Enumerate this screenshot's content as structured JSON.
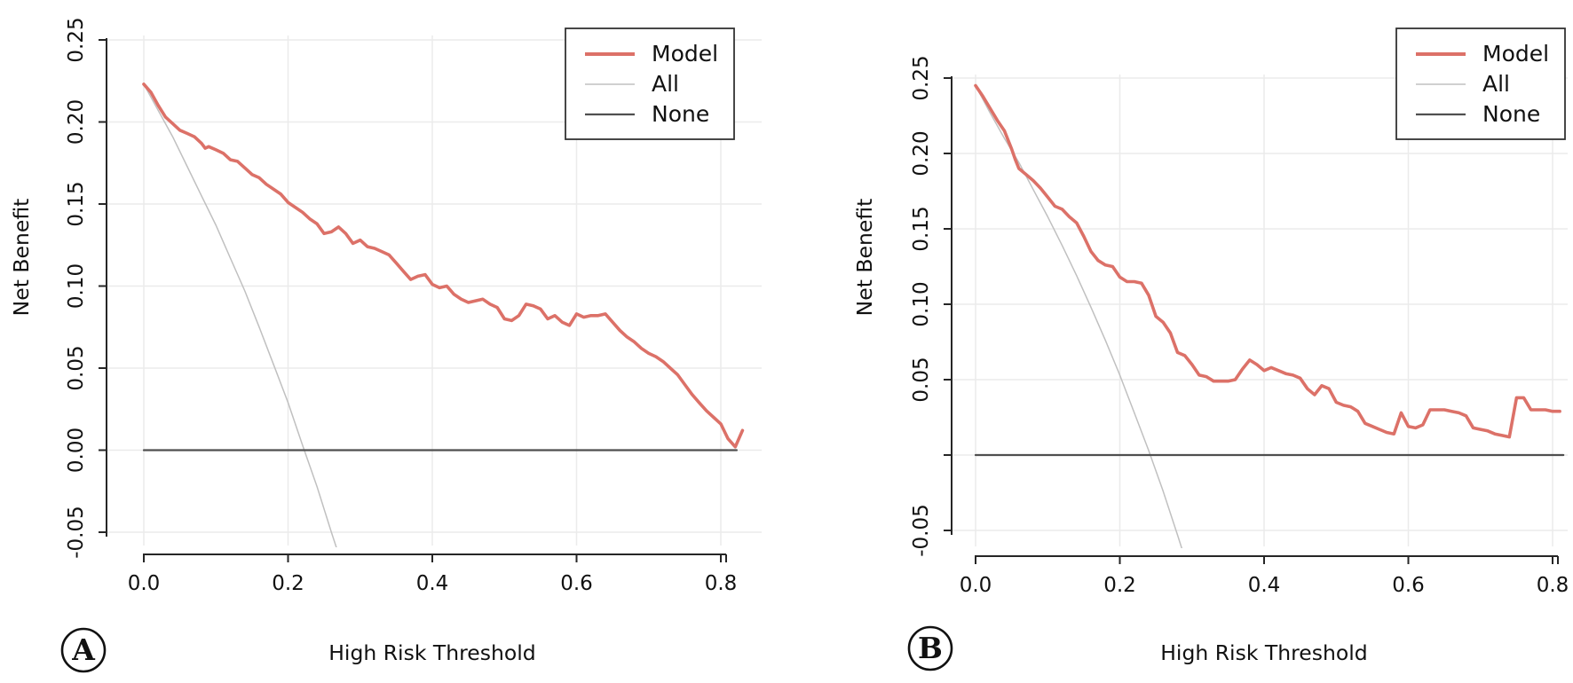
{
  "figure": {
    "background": "#ffffff",
    "description": "Two-panel decision curve analysis: Net Benefit vs High Risk Threshold"
  },
  "colors": {
    "model": "#dc7168",
    "all": "#c0c0c0",
    "none": "#4f4f4f",
    "axis": "#262626",
    "grid": "#ebebeb",
    "text": "#111111",
    "legend_border": "#333333",
    "legend_bg": "#ffffff"
  },
  "chart_data": [
    {
      "type": "line",
      "panel_label": "A",
      "title": "",
      "xlabel": "High Risk Threshold",
      "ylabel": "Net Benefit",
      "xlim": [
        0.0,
        0.84
      ],
      "ylim": [
        -0.06,
        0.25
      ],
      "grid": true,
      "x_ticks": [
        {
          "v": 0.0,
          "label": "0.0"
        },
        {
          "v": 0.2,
          "label": "0.2"
        },
        {
          "v": 0.4,
          "label": "0.4"
        },
        {
          "v": 0.6,
          "label": "0.6"
        },
        {
          "v": 0.8,
          "label": "0.8"
        }
      ],
      "y_ticks": [
        {
          "v": 0.25,
          "label": "0.25"
        },
        {
          "v": 0.2,
          "label": "0.20"
        },
        {
          "v": 0.15,
          "label": "0.15"
        },
        {
          "v": 0.1,
          "label": "0.10"
        },
        {
          "v": 0.05,
          "label": "0.05"
        },
        {
          "v": 0.0,
          "label": "0.00"
        },
        {
          "v": -0.05,
          "label": "-0.05"
        }
      ],
      "legend": {
        "position": "top-right",
        "entries": [
          {
            "label": "Model",
            "series": "model"
          },
          {
            "label": "All",
            "series": "all"
          },
          {
            "label": "None",
            "series": "none"
          }
        ]
      },
      "series": [
        {
          "name": "All",
          "key": "all",
          "points": [
            [
              0.0,
              0.223
            ],
            [
              0.02,
              0.207
            ],
            [
              0.04,
              0.191
            ],
            [
              0.06,
              0.173
            ],
            [
              0.08,
              0.155
            ],
            [
              0.1,
              0.137
            ],
            [
              0.12,
              0.117
            ],
            [
              0.14,
              0.097
            ],
            [
              0.16,
              0.075
            ],
            [
              0.18,
              0.052
            ],
            [
              0.2,
              0.029
            ],
            [
              0.22,
              0.003
            ],
            [
              0.24,
              -0.022
            ],
            [
              0.26,
              -0.05
            ],
            [
              0.272,
              -0.066
            ]
          ]
        },
        {
          "name": "None",
          "key": "none",
          "points": [
            [
              0.0,
              0.0
            ],
            [
              0.822,
              0.0
            ]
          ]
        },
        {
          "name": "Model",
          "key": "model",
          "points": [
            [
              0.0,
              0.223
            ],
            [
              0.01,
              0.218
            ],
            [
              0.02,
              0.21
            ],
            [
              0.03,
              0.203
            ],
            [
              0.04,
              0.199
            ],
            [
              0.05,
              0.195
            ],
            [
              0.06,
              0.193
            ],
            [
              0.07,
              0.191
            ],
            [
              0.08,
              0.187
            ],
            [
              0.085,
              0.184
            ],
            [
              0.09,
              0.185
            ],
            [
              0.1,
              0.183
            ],
            [
              0.11,
              0.181
            ],
            [
              0.12,
              0.177
            ],
            [
              0.13,
              0.176
            ],
            [
              0.14,
              0.172
            ],
            [
              0.15,
              0.168
            ],
            [
              0.16,
              0.166
            ],
            [
              0.17,
              0.162
            ],
            [
              0.18,
              0.159
            ],
            [
              0.19,
              0.156
            ],
            [
              0.2,
              0.151
            ],
            [
              0.21,
              0.148
            ],
            [
              0.22,
              0.145
            ],
            [
              0.23,
              0.141
            ],
            [
              0.24,
              0.138
            ],
            [
              0.25,
              0.132
            ],
            [
              0.26,
              0.133
            ],
            [
              0.27,
              0.136
            ],
            [
              0.28,
              0.132
            ],
            [
              0.29,
              0.126
            ],
            [
              0.3,
              0.128
            ],
            [
              0.31,
              0.124
            ],
            [
              0.32,
              0.123
            ],
            [
              0.33,
              0.121
            ],
            [
              0.34,
              0.119
            ],
            [
              0.35,
              0.114
            ],
            [
              0.36,
              0.109
            ],
            [
              0.37,
              0.104
            ],
            [
              0.38,
              0.106
            ],
            [
              0.39,
              0.107
            ],
            [
              0.4,
              0.101
            ],
            [
              0.41,
              0.099
            ],
            [
              0.42,
              0.1
            ],
            [
              0.43,
              0.095
            ],
            [
              0.44,
              0.092
            ],
            [
              0.45,
              0.09
            ],
            [
              0.46,
              0.091
            ],
            [
              0.47,
              0.092
            ],
            [
              0.48,
              0.089
            ],
            [
              0.49,
              0.087
            ],
            [
              0.5,
              0.08
            ],
            [
              0.51,
              0.079
            ],
            [
              0.52,
              0.082
            ],
            [
              0.53,
              0.089
            ],
            [
              0.54,
              0.088
            ],
            [
              0.55,
              0.086
            ],
            [
              0.56,
              0.08
            ],
            [
              0.57,
              0.082
            ],
            [
              0.58,
              0.078
            ],
            [
              0.59,
              0.076
            ],
            [
              0.6,
              0.083
            ],
            [
              0.61,
              0.081
            ],
            [
              0.62,
              0.082
            ],
            [
              0.63,
              0.082
            ],
            [
              0.64,
              0.083
            ],
            [
              0.65,
              0.078
            ],
            [
              0.66,
              0.073
            ],
            [
              0.67,
              0.069
            ],
            [
              0.68,
              0.066
            ],
            [
              0.69,
              0.062
            ],
            [
              0.7,
              0.059
            ],
            [
              0.71,
              0.057
            ],
            [
              0.72,
              0.054
            ],
            [
              0.73,
              0.05
            ],
            [
              0.74,
              0.046
            ],
            [
              0.75,
              0.04
            ],
            [
              0.76,
              0.034
            ],
            [
              0.77,
              0.029
            ],
            [
              0.78,
              0.024
            ],
            [
              0.79,
              0.02
            ],
            [
              0.8,
              0.016
            ],
            [
              0.81,
              0.007
            ],
            [
              0.82,
              0.002
            ],
            [
              0.83,
              0.012
            ]
          ]
        }
      ]
    },
    {
      "type": "line",
      "panel_label": "B",
      "title": "",
      "xlabel": "High Risk Threshold",
      "ylabel": "Net Benefit",
      "xlim": [
        0.0,
        0.82
      ],
      "ylim": [
        -0.06,
        0.25
      ],
      "grid": true,
      "x_ticks": [
        {
          "v": 0.0,
          "label": "0.0"
        },
        {
          "v": 0.2,
          "label": "0.2"
        },
        {
          "v": 0.4,
          "label": "0.4"
        },
        {
          "v": 0.6,
          "label": "0.6"
        },
        {
          "v": 0.8,
          "label": "0.8"
        }
      ],
      "y_ticks": [
        {
          "v": 0.25,
          "label": "0.25"
        },
        {
          "v": 0.2,
          "label": "0.20"
        },
        {
          "v": 0.15,
          "label": "0.15"
        },
        {
          "v": 0.1,
          "label": "0.10"
        },
        {
          "v": 0.05,
          "label": "0.05"
        },
        {
          "v": 0.0,
          "label": ""
        },
        {
          "v": -0.05,
          "label": "-0.05"
        }
      ],
      "legend": {
        "position": "top-right",
        "entries": [
          {
            "label": "Model",
            "series": "model"
          },
          {
            "label": "All",
            "series": "all"
          },
          {
            "label": "None",
            "series": "none"
          }
        ]
      },
      "series": [
        {
          "name": "All",
          "key": "all",
          "points": [
            [
              0.0,
              0.245
            ],
            [
              0.02,
              0.227
            ],
            [
              0.04,
              0.21
            ],
            [
              0.06,
              0.194
            ],
            [
              0.08,
              0.176
            ],
            [
              0.1,
              0.158
            ],
            [
              0.12,
              0.139
            ],
            [
              0.14,
              0.119
            ],
            [
              0.16,
              0.098
            ],
            [
              0.18,
              0.076
            ],
            [
              0.2,
              0.053
            ],
            [
              0.22,
              0.028
            ],
            [
              0.24,
              0.003
            ],
            [
              0.26,
              -0.024
            ],
            [
              0.28,
              -0.053
            ],
            [
              0.29,
              -0.068
            ]
          ]
        },
        {
          "name": "None",
          "key": "none",
          "points": [
            [
              0.0,
              0.0
            ],
            [
              0.815,
              0.0
            ]
          ]
        },
        {
          "name": "Model",
          "key": "model",
          "points": [
            [
              0.0,
              0.245
            ],
            [
              0.01,
              0.238
            ],
            [
              0.02,
              0.23
            ],
            [
              0.03,
              0.222
            ],
            [
              0.04,
              0.215
            ],
            [
              0.05,
              0.203
            ],
            [
              0.055,
              0.196
            ],
            [
              0.06,
              0.19
            ],
            [
              0.07,
              0.186
            ],
            [
              0.08,
              0.182
            ],
            [
              0.09,
              0.177
            ],
            [
              0.1,
              0.171
            ],
            [
              0.11,
              0.165
            ],
            [
              0.12,
              0.163
            ],
            [
              0.13,
              0.158
            ],
            [
              0.14,
              0.154
            ],
            [
              0.15,
              0.145
            ],
            [
              0.16,
              0.135
            ],
            [
              0.17,
              0.129
            ],
            [
              0.18,
              0.126
            ],
            [
              0.19,
              0.125
            ],
            [
              0.2,
              0.118
            ],
            [
              0.21,
              0.115
            ],
            [
              0.22,
              0.115
            ],
            [
              0.23,
              0.114
            ],
            [
              0.24,
              0.106
            ],
            [
              0.25,
              0.092
            ],
            [
              0.26,
              0.088
            ],
            [
              0.27,
              0.081
            ],
            [
              0.28,
              0.068
            ],
            [
              0.29,
              0.066
            ],
            [
              0.3,
              0.06
            ],
            [
              0.31,
              0.053
            ],
            [
              0.32,
              0.052
            ],
            [
              0.33,
              0.049
            ],
            [
              0.34,
              0.049
            ],
            [
              0.35,
              0.049
            ],
            [
              0.36,
              0.05
            ],
            [
              0.37,
              0.057
            ],
            [
              0.38,
              0.063
            ],
            [
              0.39,
              0.06
            ],
            [
              0.4,
              0.056
            ],
            [
              0.41,
              0.058
            ],
            [
              0.42,
              0.056
            ],
            [
              0.43,
              0.054
            ],
            [
              0.44,
              0.053
            ],
            [
              0.45,
              0.051
            ],
            [
              0.46,
              0.044
            ],
            [
              0.47,
              0.04
            ],
            [
              0.48,
              0.046
            ],
            [
              0.49,
              0.044
            ],
            [
              0.5,
              0.035
            ],
            [
              0.51,
              0.033
            ],
            [
              0.52,
              0.032
            ],
            [
              0.53,
              0.029
            ],
            [
              0.54,
              0.021
            ],
            [
              0.55,
              0.019
            ],
            [
              0.56,
              0.017
            ],
            [
              0.57,
              0.015
            ],
            [
              0.58,
              0.014
            ],
            [
              0.59,
              0.028
            ],
            [
              0.6,
              0.019
            ],
            [
              0.61,
              0.018
            ],
            [
              0.62,
              0.02
            ],
            [
              0.63,
              0.03
            ],
            [
              0.64,
              0.03
            ],
            [
              0.65,
              0.03
            ],
            [
              0.66,
              0.029
            ],
            [
              0.67,
              0.028
            ],
            [
              0.68,
              0.026
            ],
            [
              0.69,
              0.018
            ],
            [
              0.7,
              0.017
            ],
            [
              0.71,
              0.016
            ],
            [
              0.72,
              0.014
            ],
            [
              0.73,
              0.013
            ],
            [
              0.74,
              0.012
            ],
            [
              0.75,
              0.038
            ],
            [
              0.76,
              0.038
            ],
            [
              0.77,
              0.03
            ],
            [
              0.78,
              0.03
            ],
            [
              0.79,
              0.03
            ],
            [
              0.8,
              0.029
            ],
            [
              0.81,
              0.029
            ]
          ]
        }
      ]
    }
  ]
}
